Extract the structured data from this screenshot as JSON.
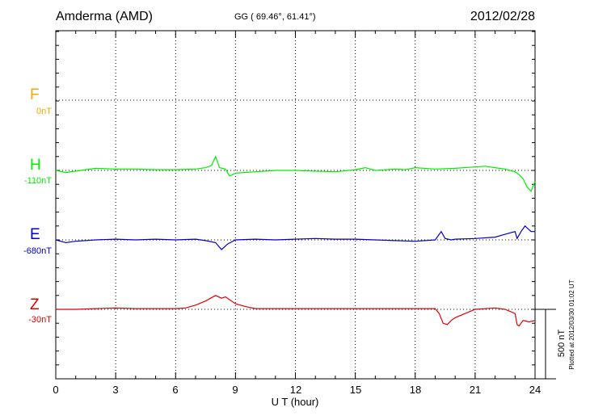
{
  "header": {
    "station": "Amderma (AMD)",
    "coordinates": "GG ( 69.46°,  61.41°)",
    "date": "2012/02/28"
  },
  "components": [
    {
      "letter": "F",
      "baseline": "0nT",
      "color": "#f5a800"
    },
    {
      "letter": "H",
      "baseline": "-110nT",
      "color": "#00ee00"
    },
    {
      "letter": "E",
      "baseline": "-680nT",
      "color": "#0000cc"
    },
    {
      "letter": "Z",
      "baseline": "-30nT",
      "color": "#dd0000"
    }
  ],
  "scale_label": "500 nT",
  "plotted_note": "Plotted at 2012/03/30 01:02 UT",
  "chart_data": {
    "type": "line",
    "xlabel": "U T (hour)",
    "xlim": [
      0,
      24
    ],
    "x_ticks": [
      0,
      3,
      6,
      9,
      12,
      15,
      18,
      21,
      24
    ],
    "scale_bar_nT": 500,
    "grid": true,
    "series": [
      {
        "name": "H",
        "color": "#00ee00",
        "x": [
          0,
          0.5,
          1,
          1.5,
          2,
          3,
          4,
          5,
          6,
          7,
          7.5,
          7.8,
          8,
          8.2,
          8.5,
          8.7,
          9,
          10,
          11,
          12,
          13,
          14,
          15,
          15.5,
          16,
          17,
          17.5,
          18,
          19,
          20,
          21,
          21.5,
          22,
          22.5,
          23,
          23.2,
          23.4,
          23.6,
          23.8,
          24
        ],
        "y": [
          0,
          -15,
          -5,
          5,
          15,
          10,
          10,
          5,
          5,
          10,
          20,
          35,
          100,
          20,
          10,
          -40,
          -20,
          -10,
          0,
          0,
          -5,
          -10,
          5,
          20,
          0,
          10,
          5,
          20,
          10,
          15,
          25,
          30,
          20,
          10,
          -10,
          -30,
          -60,
          -120,
          -150,
          -80
        ]
      },
      {
        "name": "E",
        "color": "#0000cc",
        "x": [
          0,
          0.5,
          1,
          2,
          3,
          4,
          5,
          6,
          7,
          7.5,
          8,
          8.3,
          8.6,
          9,
          10,
          11,
          12,
          13,
          14,
          15,
          16,
          17,
          18,
          19,
          19.3,
          19.5,
          19.8,
          20,
          21,
          22,
          22.5,
          23,
          23.1,
          23.3,
          23.5,
          23.8,
          24
        ],
        "y": [
          0,
          -20,
          -10,
          0,
          5,
          0,
          5,
          0,
          5,
          -5,
          -20,
          -70,
          -30,
          0,
          5,
          0,
          5,
          10,
          5,
          5,
          0,
          -5,
          -10,
          0,
          60,
          10,
          0,
          5,
          10,
          20,
          40,
          60,
          10,
          60,
          100,
          60,
          60
        ]
      },
      {
        "name": "Z",
        "color": "#dd0000",
        "x": [
          0,
          1,
          2,
          3,
          4,
          5,
          6,
          6.5,
          7,
          7.5,
          8,
          8.3,
          8.5,
          9,
          9.5,
          10,
          11,
          12,
          13,
          14,
          15,
          16,
          17,
          18,
          19,
          19.2,
          19.4,
          19.6,
          19.8,
          20,
          20.5,
          21,
          22,
          22.5,
          23,
          23.1,
          23.2,
          23.4,
          23.7,
          24
        ],
        "y": [
          0,
          0,
          5,
          10,
          5,
          5,
          5,
          10,
          30,
          60,
          100,
          80,
          90,
          40,
          20,
          5,
          5,
          5,
          5,
          5,
          5,
          5,
          5,
          5,
          5,
          -30,
          -100,
          -110,
          -80,
          -60,
          -30,
          0,
          10,
          0,
          -30,
          -110,
          -120,
          -80,
          -90,
          -80
        ]
      }
    ]
  }
}
